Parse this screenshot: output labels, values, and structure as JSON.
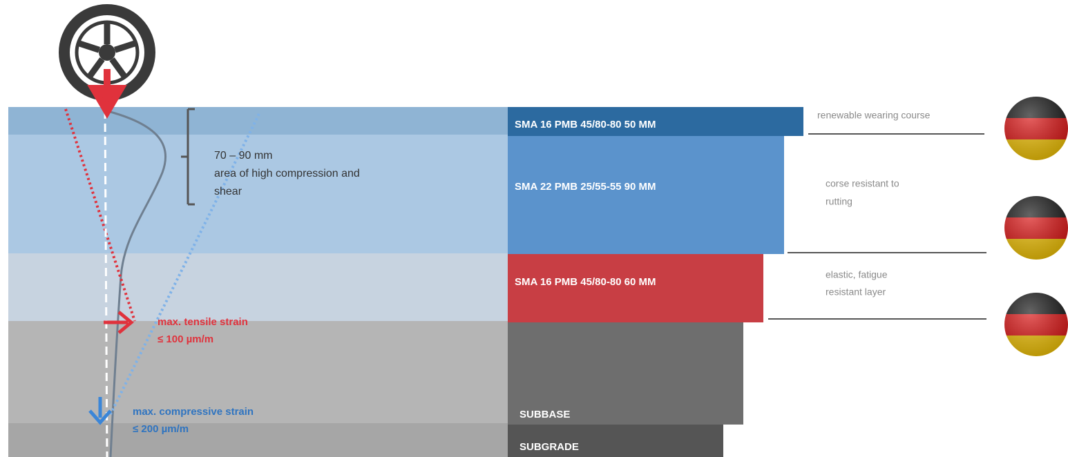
{
  "layers": [
    {
      "label": "SMA 16 PMB 45/80-80 50 MM"
    },
    {
      "label": "SMA 22 PMB 25/55-55 90 MM"
    },
    {
      "label": "SMA 16 PMB 45/80-80 60 MM"
    },
    {
      "label": "SUBBASE"
    },
    {
      "label": "SUBGRADE"
    }
  ],
  "notes": [
    [
      "renewable wearing course"
    ],
    [
      "corse resistant to",
      "rutting"
    ],
    [
      "elastic, fatigue",
      "resistant layer"
    ]
  ],
  "compression_zone": {
    "depth": "70 – 90 mm",
    "description": [
      "area of high compression and",
      "shear"
    ]
  },
  "tensile": [
    "max. tensile strain",
    "≤ 100 µm/m"
  ],
  "compressive": [
    "max. compressive strain",
    "≤ 200 µm/m"
  ]
}
